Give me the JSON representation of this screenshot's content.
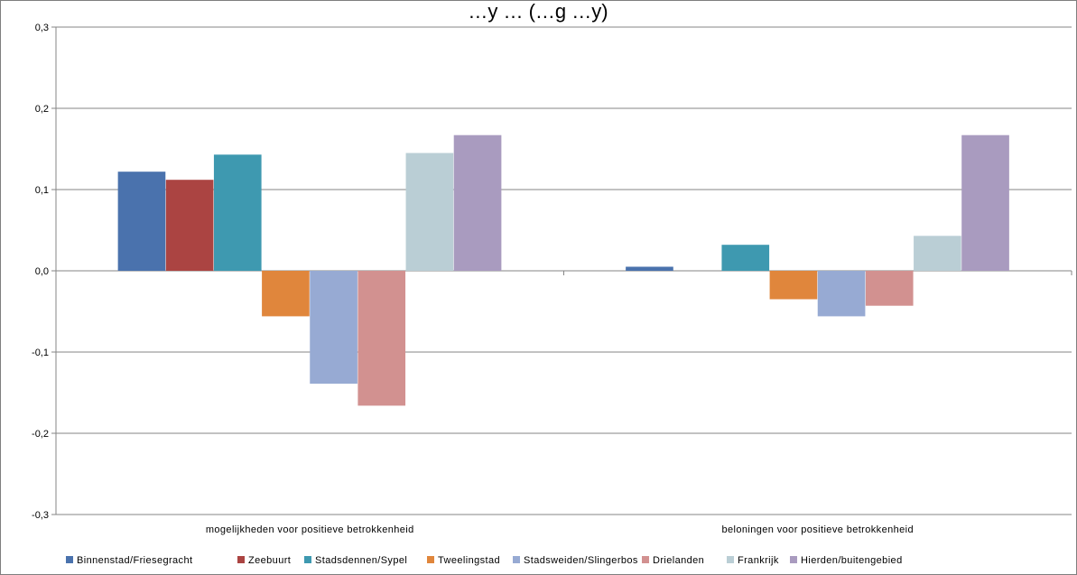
{
  "chart_data": {
    "type": "bar",
    "title": "…y … (…g …y)",
    "categories": [
      "mogelijkheden voor positieve betrokkenheid",
      "beloningen voor positieve betrokkenheid"
    ],
    "series": [
      {
        "name": "Binnenstad/Friesegracht",
        "color": "#4a72ad",
        "values": [
          0.122,
          0.005
        ]
      },
      {
        "name": "Zeebuurt",
        "color": "#ab4442",
        "values": [
          0.112,
          0.0
        ]
      },
      {
        "name": "Stadsdennen/Sypel",
        "color": "#3e99b0",
        "values": [
          0.143,
          0.032
        ]
      },
      {
        "name": "Tweelingstad",
        "color": "#e0863c",
        "values": [
          -0.056,
          -0.035
        ]
      },
      {
        "name": "Stadsweiden/Slingerbos",
        "color": "#97aad3",
        "values": [
          -0.139,
          -0.056
        ]
      },
      {
        "name": "Drielanden",
        "color": "#d29190",
        "values": [
          -0.166,
          -0.043
        ]
      },
      {
        "name": "Frankrijk",
        "color": "#baced5",
        "values": [
          0.145,
          0.043
        ]
      },
      {
        "name": "Hierden/buitengebied",
        "color": "#a99bbf",
        "values": [
          0.167,
          0.167
        ]
      }
    ],
    "ylim": [
      -0.3,
      0.3
    ],
    "yticks": [
      "-0,3",
      "-0,2",
      "-0,1",
      "0,0",
      "0,1",
      "0,2",
      "0,3"
    ],
    "grid": true,
    "legend_position": "bottom"
  }
}
